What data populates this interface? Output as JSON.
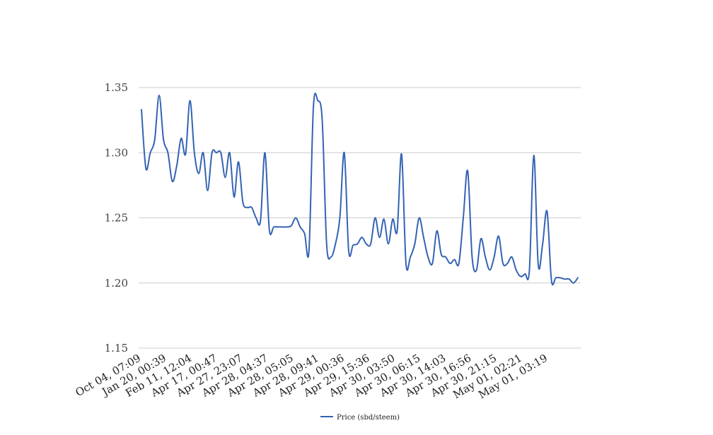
{
  "chart_data": {
    "type": "line",
    "title": "",
    "xlabel": "",
    "ylabel": "",
    "ylim": [
      1.15,
      1.35
    ],
    "yticks": [
      "1.15",
      "1.20",
      "1.25",
      "1.30",
      "1.35"
    ],
    "xtick_labels": [
      "Oct 04, 07:09",
      "Jan 20, 00:39",
      "Feb 11, 12:04",
      "Apr 17, 00:47",
      "Apr 27, 23:07",
      "Apr 28, 04:37",
      "Apr 28, 05:05",
      "Apr 28, 09:41",
      "Apr 29, 00:36",
      "Apr 29, 15:36",
      "Apr 30, 03:50",
      "Apr 30, 06:15",
      "Apr 30, 14:03",
      "Apr 30, 16:56",
      "Apr 30, 21:15",
      "May 01, 02:21",
      "May 01, 03:19"
    ],
    "grid": true,
    "legend_position": "bottom",
    "series": [
      {
        "name": "Price (sbd/steem)",
        "color": "#3463b4",
        "values": [
          1.333,
          1.288,
          1.3,
          1.31,
          1.344,
          1.31,
          1.3,
          1.278,
          1.29,
          1.311,
          1.299,
          1.34,
          1.3,
          1.284,
          1.3,
          1.271,
          1.3,
          1.3,
          1.3,
          1.281,
          1.3,
          1.266,
          1.293,
          1.262,
          1.258,
          1.258,
          1.25,
          1.248,
          1.3,
          1.241,
          1.243,
          1.243,
          1.243,
          1.243,
          1.244,
          1.25,
          1.243,
          1.238,
          1.225,
          1.335,
          1.34,
          1.325,
          1.23,
          1.22,
          1.23,
          1.25,
          1.3,
          1.225,
          1.229,
          1.23,
          1.235,
          1.23,
          1.23,
          1.25,
          1.235,
          1.249,
          1.23,
          1.249,
          1.24,
          1.299,
          1.215,
          1.22,
          1.23,
          1.25,
          1.235,
          1.22,
          1.215,
          1.24,
          1.222,
          1.22,
          1.215,
          1.218,
          1.215,
          1.25,
          1.286,
          1.22,
          1.21,
          1.234,
          1.22,
          1.21,
          1.22,
          1.236,
          1.215,
          1.215,
          1.22,
          1.21,
          1.205,
          1.207,
          1.21,
          1.298,
          1.214,
          1.23,
          1.255,
          1.202,
          1.204,
          1.204,
          1.203,
          1.203,
          1.2,
          1.204
        ]
      }
    ]
  }
}
